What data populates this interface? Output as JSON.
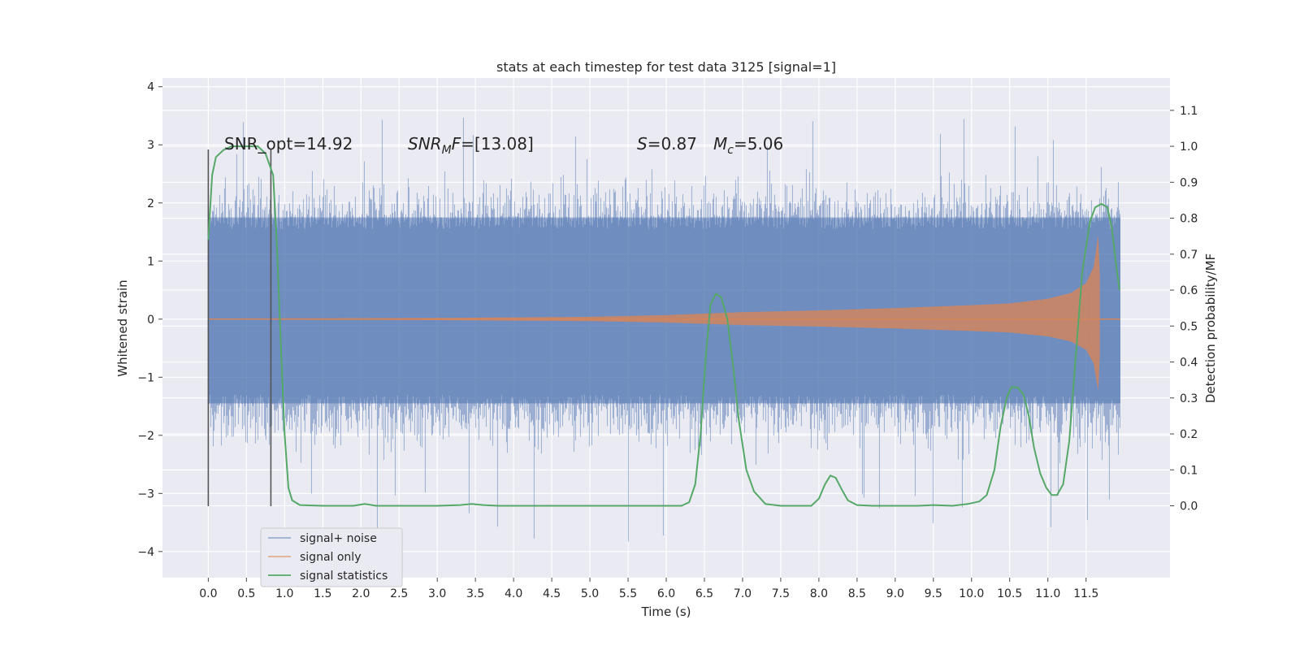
{
  "chart_data": {
    "type": "line",
    "title": "stats at each timestep for test data 3125 [signal=1]",
    "xlabel": "Time (s)",
    "ylabel_left": "Whitened strain",
    "ylabel_right": "Detection probability/MF",
    "xlim": [
      -0.6,
      12.6
    ],
    "ylim_left": [
      -4.45,
      4.15
    ],
    "ylim_right": [
      -0.2,
      1.19
    ],
    "x_ticks": [
      "0.0",
      "0.5",
      "1.0",
      "1.5",
      "2.0",
      "2.5",
      "3.0",
      "3.5",
      "4.0",
      "4.5",
      "5.0",
      "5.5",
      "6.0",
      "6.5",
      "7.0",
      "7.5",
      "8.0",
      "8.5",
      "9.0",
      "9.5",
      "10.0",
      "10.5",
      "11.0",
      "11.5"
    ],
    "y_ticks_left": [
      "4",
      "3",
      "2",
      "1",
      "0",
      "−1",
      "−2",
      "−3",
      "−4"
    ],
    "y_ticks_right": [
      "1.1",
      "1.0",
      "0.9",
      "0.8",
      "0.7",
      "0.6",
      "0.5",
      "0.4",
      "0.3",
      "0.2",
      "0.1",
      "0.0"
    ],
    "grid": true,
    "legend_position": "lower-left",
    "colors": {
      "background": "#eaeaf2",
      "grid": "#ffffff",
      "noise": "#4c72b0",
      "signal": "#dd8452",
      "statistics": "#55a868",
      "window_lines": "#555555"
    },
    "annotations": {
      "snr_opt": "SNR_opt=14.92",
      "snr_mf_italic": "SNR",
      "snr_mf_sub": "M",
      "snr_mf_F": "F",
      "snr_mf_value": "=[13.08]",
      "s_italic": "S",
      "s_value": "=0.87",
      "mc_italic": "M",
      "mc_sub": "c",
      "mc_value": "=5.06"
    },
    "window_markers": {
      "x": [
        0.0,
        0.82
      ],
      "y": [
        -3.22,
        2.92
      ]
    },
    "series": [
      {
        "name": "signal+ noise",
        "axis": "left",
        "kind": "noise-envelope",
        "x_range": [
          0.0,
          11.95
        ],
        "typical_band": [
          -1.45,
          1.75
        ],
        "extreme_range": [
          -4.1,
          3.8
        ]
      },
      {
        "name": "signal only",
        "axis": "left",
        "kind": "chirp",
        "x_range": [
          0.0,
          11.95
        ],
        "merger_time": 11.68,
        "envelope": [
          {
            "t": 0.0,
            "a": 0.01
          },
          {
            "t": 3.0,
            "a": 0.02
          },
          {
            "t": 5.0,
            "a": 0.04
          },
          {
            "t": 6.0,
            "a": 0.07
          },
          {
            "t": 7.0,
            "a": 0.12
          },
          {
            "t": 8.0,
            "a": 0.15
          },
          {
            "t": 9.0,
            "a": 0.19
          },
          {
            "t": 10.0,
            "a": 0.24
          },
          {
            "t": 10.5,
            "a": 0.27
          },
          {
            "t": 11.0,
            "a": 0.35
          },
          {
            "t": 11.3,
            "a": 0.45
          },
          {
            "t": 11.5,
            "a": 0.62
          },
          {
            "t": 11.6,
            "a": 0.9
          },
          {
            "t": 11.66,
            "a": 1.45
          },
          {
            "t": 11.7,
            "a": 0.0
          }
        ]
      },
      {
        "name": "signal statistics",
        "axis": "right",
        "kind": "line",
        "points": [
          [
            0.0,
            0.74
          ],
          [
            0.05,
            0.92
          ],
          [
            0.1,
            0.97
          ],
          [
            0.2,
            0.99
          ],
          [
            0.3,
            1.0
          ],
          [
            0.5,
            1.0
          ],
          [
            0.65,
            1.0
          ],
          [
            0.75,
            0.98
          ],
          [
            0.85,
            0.92
          ],
          [
            0.9,
            0.72
          ],
          [
            0.95,
            0.45
          ],
          [
            1.0,
            0.2
          ],
          [
            1.05,
            0.05
          ],
          [
            1.1,
            0.015
          ],
          [
            1.2,
            0.002
          ],
          [
            1.5,
            0.0
          ],
          [
            1.9,
            0.0
          ],
          [
            2.05,
            0.005
          ],
          [
            2.2,
            0.0
          ],
          [
            3.0,
            0.0
          ],
          [
            3.3,
            0.002
          ],
          [
            3.45,
            0.005
          ],
          [
            3.6,
            0.002
          ],
          [
            3.8,
            0.0
          ],
          [
            4.5,
            0.0
          ],
          [
            5.5,
            0.0
          ],
          [
            6.2,
            0.0
          ],
          [
            6.3,
            0.01
          ],
          [
            6.38,
            0.06
          ],
          [
            6.45,
            0.2
          ],
          [
            6.52,
            0.42
          ],
          [
            6.58,
            0.56
          ],
          [
            6.65,
            0.59
          ],
          [
            6.72,
            0.58
          ],
          [
            6.8,
            0.52
          ],
          [
            6.88,
            0.38
          ],
          [
            6.95,
            0.24
          ],
          [
            7.05,
            0.1
          ],
          [
            7.15,
            0.04
          ],
          [
            7.3,
            0.005
          ],
          [
            7.5,
            0.0
          ],
          [
            7.9,
            0.0
          ],
          [
            8.0,
            0.02
          ],
          [
            8.08,
            0.06
          ],
          [
            8.15,
            0.084
          ],
          [
            8.22,
            0.078
          ],
          [
            8.3,
            0.045
          ],
          [
            8.38,
            0.015
          ],
          [
            8.5,
            0.002
          ],
          [
            8.7,
            0.0
          ],
          [
            9.3,
            0.0
          ],
          [
            9.5,
            0.002
          ],
          [
            9.75,
            0.0
          ],
          [
            9.95,
            0.005
          ],
          [
            10.1,
            0.012
          ],
          [
            10.2,
            0.03
          ],
          [
            10.3,
            0.1
          ],
          [
            10.38,
            0.22
          ],
          [
            10.46,
            0.3
          ],
          [
            10.52,
            0.33
          ],
          [
            10.6,
            0.33
          ],
          [
            10.68,
            0.31
          ],
          [
            10.75,
            0.25
          ],
          [
            10.82,
            0.16
          ],
          [
            10.9,
            0.09
          ],
          [
            10.98,
            0.05
          ],
          [
            11.05,
            0.03
          ],
          [
            11.12,
            0.03
          ],
          [
            11.2,
            0.06
          ],
          [
            11.28,
            0.18
          ],
          [
            11.36,
            0.4
          ],
          [
            11.45,
            0.65
          ],
          [
            11.55,
            0.79
          ],
          [
            11.62,
            0.83
          ],
          [
            11.7,
            0.84
          ],
          [
            11.78,
            0.83
          ],
          [
            11.84,
            0.77
          ],
          [
            11.9,
            0.66
          ],
          [
            11.94,
            0.6
          ]
        ]
      }
    ]
  }
}
